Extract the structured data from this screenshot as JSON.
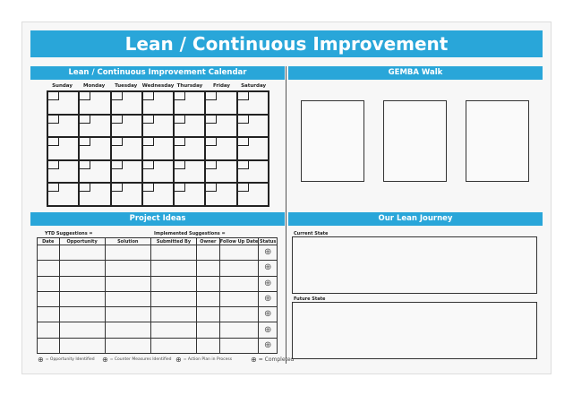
{
  "title": "Lean / Continuous Improvement",
  "calendar": {
    "header": "Lean / Continuous Improvement Calendar",
    "days": [
      "Sunday",
      "Monday",
      "Tuesday",
      "Wednesday",
      "Thursday",
      "Friday",
      "Saturday"
    ],
    "weeks": 5
  },
  "gemba": {
    "header": "GEMBA Walk",
    "boxes": 3
  },
  "project_ideas": {
    "header": "Project Ideas",
    "ytd_label": "YTD Suggestions =",
    "implemented_label": "Implemented Suggestions =",
    "columns": [
      "Date",
      "Opportunity",
      "Solution",
      "Submitted By",
      "Owner",
      "Follow Up Date",
      "Status"
    ],
    "rows": 7,
    "status_icon": "circle-plus-icon",
    "legend": [
      "= Opportunity Identified",
      "= Counter Measures Identified",
      "= Action Plan in Process",
      "= Completed"
    ]
  },
  "journey": {
    "header": "Our Lean Journey",
    "current_label": "Current State",
    "future_label": "Future State"
  },
  "colors": {
    "accent": "#29a6d9"
  }
}
